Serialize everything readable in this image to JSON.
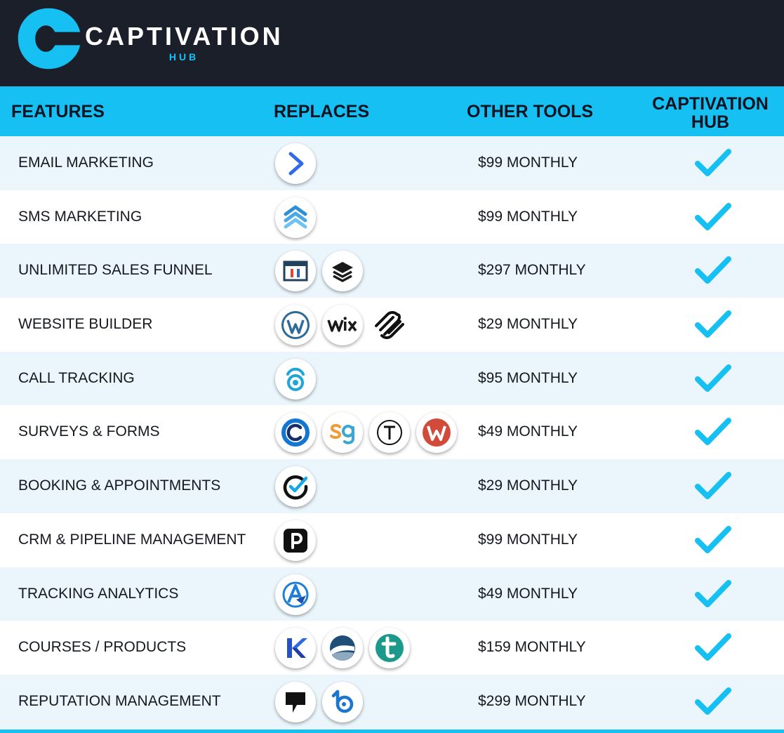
{
  "brand": {
    "name": "CAPTIVATION",
    "sub": "HUB",
    "accent": "#16c0f2",
    "dark": "#1b1f2a"
  },
  "header": {
    "features": "FEATURES",
    "replaces": "REPLACES",
    "other_tools": "OTHER TOOLS",
    "hub_line1": "CAPTIVATION",
    "hub_line2": "HUB"
  },
  "rows": [
    {
      "feature": "EMAIL MARKETING",
      "price": "$99 MONTHLY",
      "icons": [
        "activecampaign-icon"
      ]
    },
    {
      "feature": "SMS MARKETING",
      "price": "$99 MONTHLY",
      "icons": [
        "chevrons-up-icon"
      ]
    },
    {
      "feature": "UNLIMITED SALES FUNNEL",
      "price": "$297 MONTHLY",
      "icons": [
        "clickfunnels-icon",
        "layers-icon"
      ]
    },
    {
      "feature": "WEBSITE BUILDER",
      "price": "$29 MONTHLY",
      "icons": [
        "wordpress-icon",
        "wix-icon",
        "squarespace-icon"
      ]
    },
    {
      "feature": "CALL TRACKING",
      "price": "$95 MONTHLY",
      "icons": [
        "calltracking-icon"
      ]
    },
    {
      "feature": "SURVEYS & FORMS",
      "price": "$49 MONTHLY",
      "icons": [
        "cognito-icon",
        "surveygizmo-icon",
        "typeform-icon",
        "wufoo-icon"
      ]
    },
    {
      "feature": "BOOKING & APPOINTMENTS",
      "price": "$29 MONTHLY",
      "icons": [
        "acuity-icon"
      ]
    },
    {
      "feature": "CRM & PIPELINE MANAGEMENT",
      "price": "$99 MONTHLY",
      "icons": [
        "pipedrive-icon"
      ]
    },
    {
      "feature": "TRACKING ANALYTICS",
      "price": "$49 MONTHLY",
      "icons": [
        "analytics-icon"
      ]
    },
    {
      "feature": "COURSES / PRODUCTS",
      "price": "$159 MONTHLY",
      "icons": [
        "kajabi-icon",
        "thinkific-icon",
        "teachable-icon"
      ]
    },
    {
      "feature": "REPUTATION MANAGEMENT",
      "price": "$299 MONTHLY",
      "icons": [
        "podium-icon",
        "birdeye-icon"
      ]
    }
  ]
}
